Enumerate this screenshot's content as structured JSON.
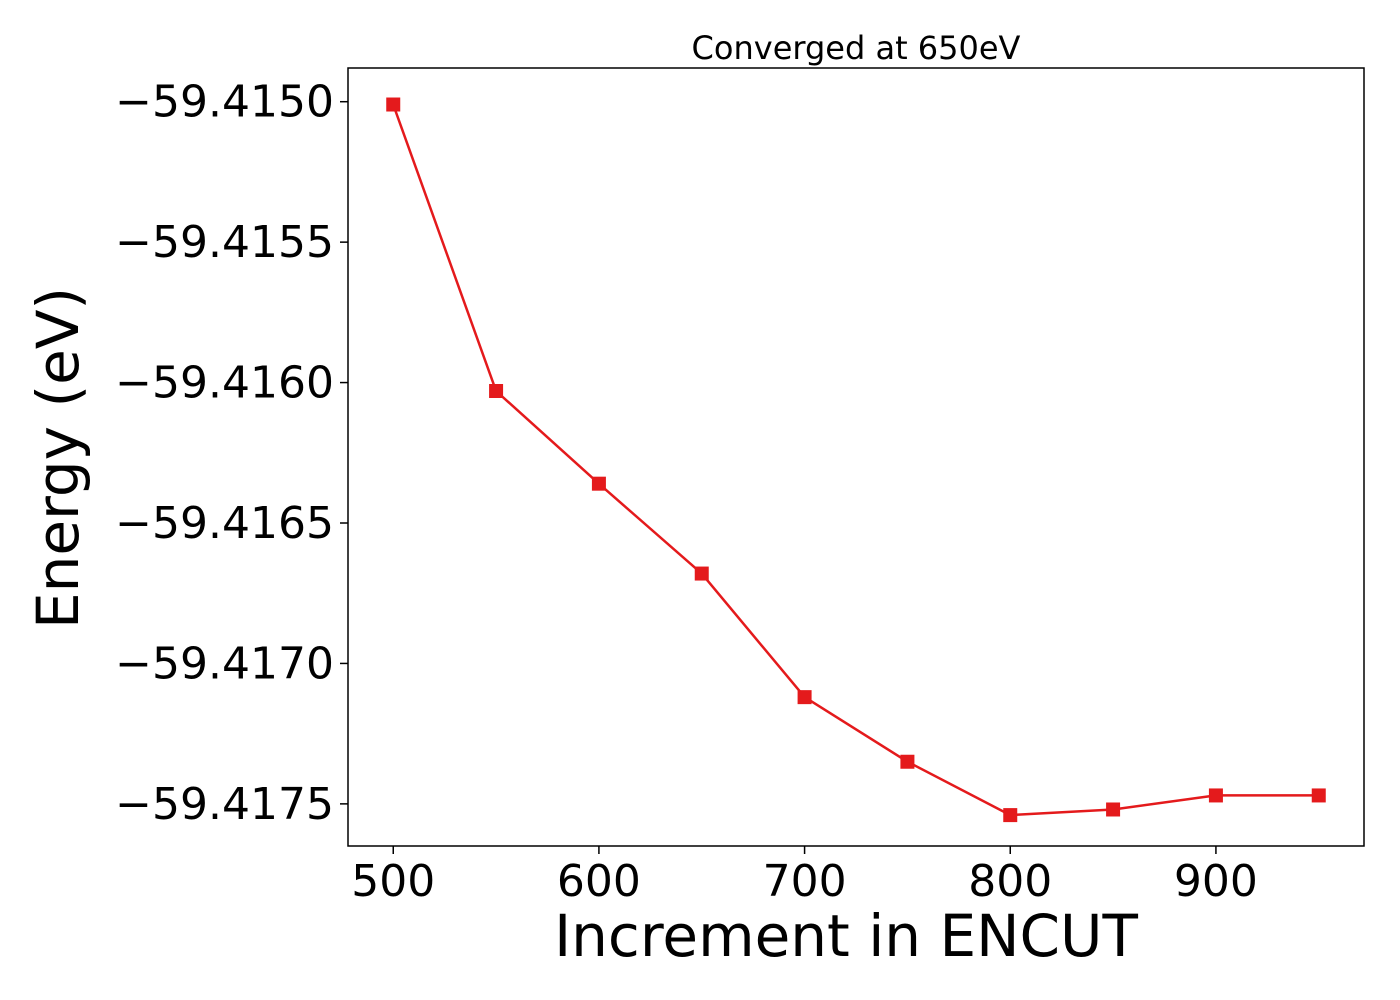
{
  "chart_data": {
    "type": "line",
    "title": "Converged at 650eV",
    "xlabel": "Increment in ENCUT",
    "ylabel": "Energy (eV)",
    "xlim": [
      478,
      972
    ],
    "ylim": [
      -59.41765,
      -59.41488
    ],
    "xticks": [
      500,
      600,
      700,
      800,
      900
    ],
    "xtick_labels": [
      "500",
      "600",
      "700",
      "800",
      "900"
    ],
    "yticks": [
      -59.415,
      -59.4155,
      -59.416,
      -59.4165,
      -59.417,
      -59.4175
    ],
    "ytick_labels": [
      "−59.4150",
      "−59.4155",
      "−59.4160",
      "−59.4165",
      "−59.4170",
      "−59.4175"
    ],
    "grid": false,
    "series": [
      {
        "color": "#e41a1c",
        "marker": "square",
        "x": [
          500,
          550,
          600,
          650,
          700,
          750,
          800,
          850,
          900,
          950
        ],
        "y": [
          -59.41501,
          -59.41603,
          -59.41636,
          -59.41668,
          -59.41712,
          -59.41735,
          -59.41754,
          -59.41752,
          -59.41747,
          -59.41747
        ]
      }
    ]
  }
}
